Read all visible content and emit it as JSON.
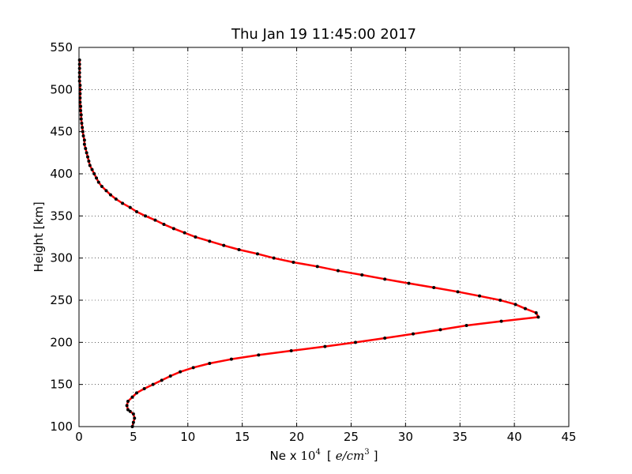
{
  "chart_data": {
    "type": "line",
    "title": "Thu Jan 19 11:45:00 2017",
    "xlabel_text": "Ne x ",
    "xlabel_math": "10",
    "xlabel_exp": "4",
    "xlabel_unit_open": "[",
    "xlabel_unit_e": "e/cm",
    "xlabel_unit_exp": "3",
    "xlabel_unit_close": "]",
    "ylabel": "Height [km]",
    "xlim": [
      0,
      45
    ],
    "ylim": [
      100,
      550
    ],
    "xticks": [
      "0",
      "5",
      "10",
      "15",
      "20",
      "25",
      "30",
      "35",
      "40",
      "45"
    ],
    "yticks": [
      "100",
      "150",
      "200",
      "250",
      "300",
      "350",
      "400",
      "450",
      "500",
      "550"
    ],
    "grid": true,
    "line_color": "#ff0000",
    "marker_color": "#000000",
    "series": [
      {
        "x": [
          4.9,
          5.0,
          5.1,
          5.0,
          4.7,
          4.5,
          4.4,
          4.5,
          4.9,
          5.3,
          6.0,
          6.8,
          7.6,
          8.4,
          9.3,
          10.5,
          12.0,
          14.0,
          16.5,
          19.5,
          22.6,
          25.4,
          28.1,
          30.7,
          33.2,
          35.6,
          38.8,
          42.2,
          42.0,
          41.0,
          40.1,
          38.7,
          36.8,
          34.8,
          32.6,
          30.3,
          28.1,
          26.0,
          23.8,
          21.9,
          19.7,
          17.9,
          16.4,
          14.7,
          13.3,
          12.0,
          10.7,
          9.7,
          8.7,
          7.8,
          7.0,
          6.1,
          5.3,
          4.7,
          4.0,
          3.4,
          2.9,
          2.5,
          2.1,
          1.8,
          1.6,
          1.4,
          1.2,
          1.0,
          0.9,
          0.8,
          0.7,
          0.6,
          0.5,
          0.5,
          0.4,
          0.35,
          0.3,
          0.25,
          0.2,
          0.2,
          0.15,
          0.15,
          0.1,
          0.1,
          0.1,
          0.1,
          0.1,
          0.05,
          0.05,
          0.05,
          0.05,
          0.05,
          0.05
        ],
        "y": [
          100,
          105,
          110,
          115,
          118,
          120,
          125,
          130,
          135,
          140,
          145,
          150,
          155,
          160,
          165,
          170,
          175,
          180,
          185,
          190,
          195,
          200,
          205,
          210,
          215,
          220,
          225,
          230,
          235,
          240,
          245,
          250,
          255,
          260,
          265,
          270,
          275,
          280,
          285,
          290,
          295,
          300,
          305,
          310,
          315,
          320,
          325,
          330,
          335,
          340,
          345,
          350,
          355,
          360,
          365,
          370,
          375,
          380,
          385,
          390,
          395,
          400,
          405,
          410,
          415,
          420,
          425,
          430,
          435,
          440,
          445,
          450,
          455,
          460,
          465,
          470,
          475,
          480,
          485,
          490,
          495,
          500,
          505,
          510,
          515,
          520,
          525,
          530,
          535
        ]
      }
    ]
  }
}
